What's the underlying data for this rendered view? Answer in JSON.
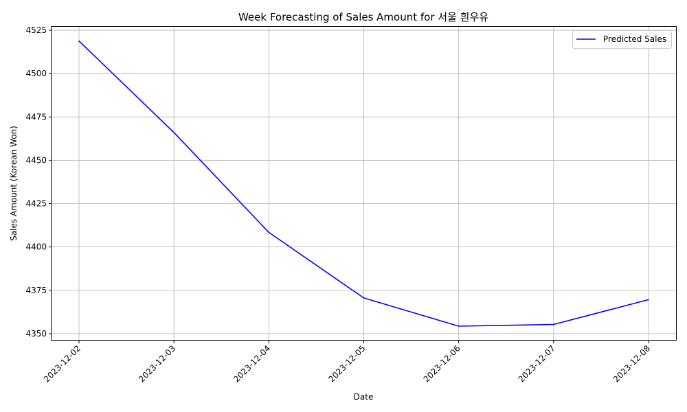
{
  "chart_data": {
    "type": "line",
    "title": "Week Forecasting of Sales Amount for 서울 흰우유",
    "xlabel": "Date",
    "ylabel": "Sales Amount (Korean Won)",
    "categories": [
      "2023-12-02",
      "2023-12-03",
      "2023-12-04",
      "2023-12-05",
      "2023-12-06",
      "2023-12-07",
      "2023-12-08"
    ],
    "series": [
      {
        "name": "Predicted Sales",
        "color": "#0000ff",
        "values": [
          4518.8,
          4466.0,
          4408.4,
          4370.6,
          4354.3,
          4355.3,
          4369.6
        ]
      }
    ],
    "ylim": [
      4346,
      4527
    ],
    "yticks": [
      4350,
      4375,
      4400,
      4425,
      4450,
      4475,
      4500,
      4525
    ],
    "grid": true,
    "legend_position": "top-right"
  }
}
